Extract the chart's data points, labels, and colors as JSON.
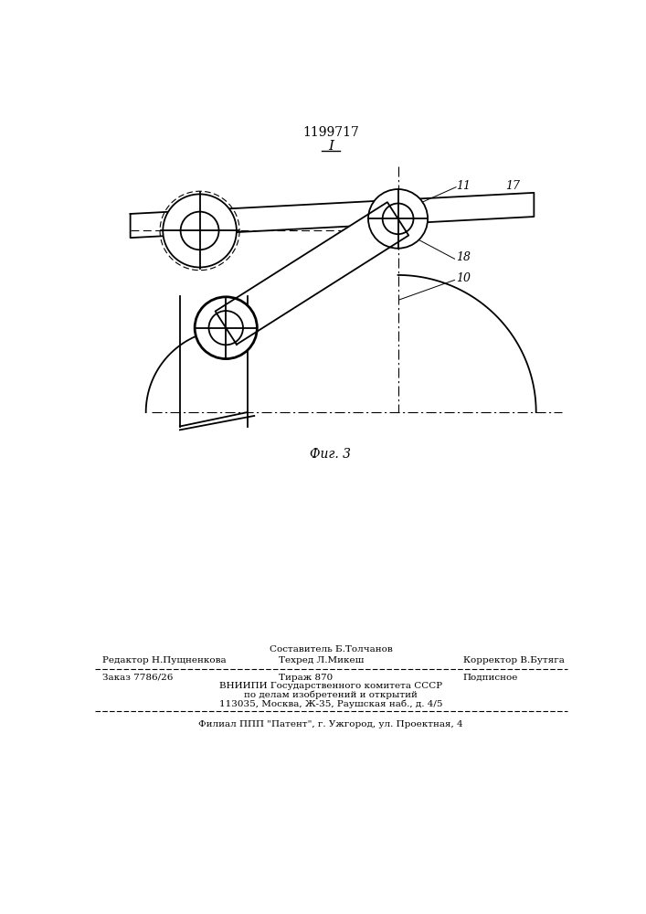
{
  "patent_number": "1199717",
  "fig_label": "I",
  "fig_caption": "Фиг. 3",
  "footer_line1_center_top": "Составитель Б.Толчанов",
  "footer_line1_left": "Редактор Н.Пущненкова",
  "footer_line1_center": "Техред Л.Микеш",
  "footer_line1_right": "Корректор В.Бутяга",
  "footer_line2_left": "Заказ 7786/26",
  "footer_line2_center": "Тираж 870",
  "footer_line2_right": "Подписное",
  "footer_line3": "ВНИИПИ Государственного комитета СССР",
  "footer_line4": "по делам изобретений и открытий",
  "footer_line5": "113035, Москва, Ж-35, Раушская наб., д. 4/5",
  "footer_line6": "Филиал ППП \"Патент\", г. Ужгород, ул. Проектная, 4",
  "bg_color": "#ffffff",
  "line_color": "#000000"
}
